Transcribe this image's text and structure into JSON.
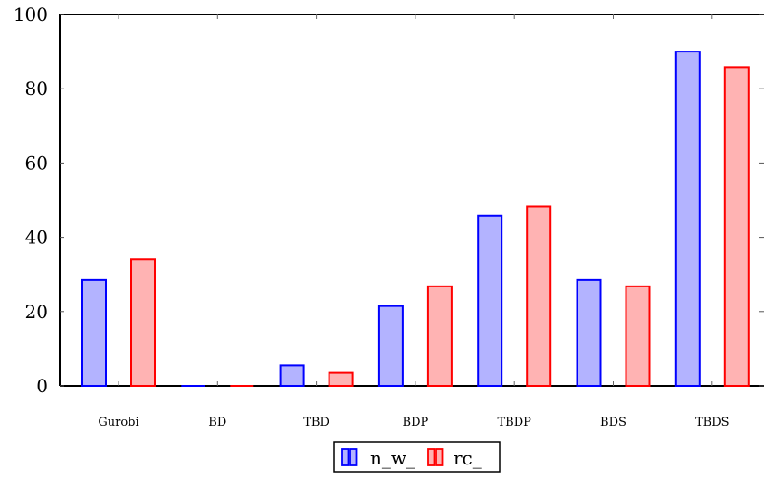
{
  "chart_data": {
    "type": "bar",
    "categories": [
      "Gurobi",
      "BD",
      "TBD",
      "BDP",
      "TBDP",
      "BDS",
      "TBDS"
    ],
    "series": [
      {
        "name": "n_w_",
        "values": [
          28.5,
          0,
          5.5,
          21.5,
          45.8,
          28.5,
          90
        ]
      },
      {
        "name": "rc_",
        "values": [
          34,
          0,
          3.5,
          26.8,
          48.3,
          26.8,
          85.8
        ]
      }
    ],
    "yticks": [
      0,
      20,
      40,
      60,
      80,
      100
    ],
    "ylim": [
      0,
      100
    ],
    "legend_position": "bottom-center",
    "colors": {
      "series1_fill": "#B3B3FF",
      "series1_stroke": "#0000FF",
      "series2_fill": "#FFB3B3",
      "series2_stroke": "#FF0000"
    }
  }
}
